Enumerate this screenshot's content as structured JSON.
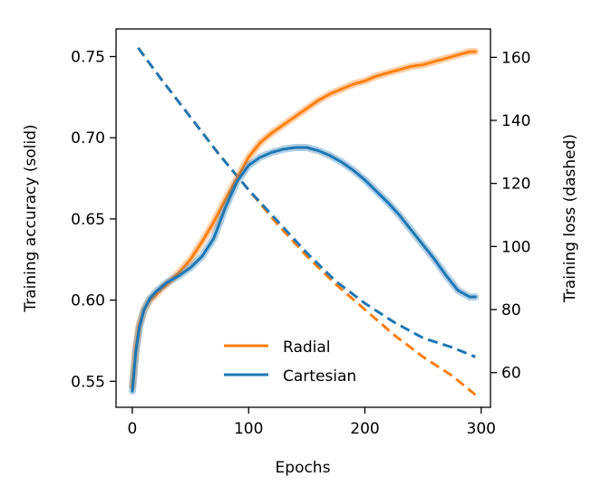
{
  "chart_data": {
    "type": "line",
    "xlabel": "Epochs",
    "ylabel_left": "Training accuracy (solid)",
    "ylabel_right": "Training loss (dashed)",
    "xlim": [
      -14,
      308
    ],
    "ylim_left": [
      0.534,
      0.767
    ],
    "ylim_right": [
      49,
      169
    ],
    "xticks": [
      0,
      100,
      200,
      300
    ],
    "yticks_left": [
      0.55,
      0.6,
      0.65,
      0.7,
      0.75
    ],
    "yticks_right": [
      60,
      80,
      100,
      120,
      140,
      160
    ],
    "legend_position": "lower-center",
    "grid": false,
    "colors": {
      "radial": "#ff7f0e",
      "cartesian": "#1f77b4"
    },
    "accuracy_series": [
      {
        "name": "Radial",
        "axis": "left",
        "style": "solid",
        "x": [
          0,
          3,
          6,
          10,
          15,
          20,
          25,
          30,
          40,
          50,
          60,
          70,
          80,
          90,
          100,
          110,
          120,
          130,
          140,
          150,
          160,
          170,
          180,
          190,
          200,
          210,
          220,
          230,
          240,
          250,
          260,
          270,
          280,
          290,
          295
        ],
        "y": [
          0.547,
          0.57,
          0.585,
          0.594,
          0.6,
          0.603,
          0.607,
          0.61,
          0.617,
          0.625,
          0.636,
          0.648,
          0.662,
          0.675,
          0.688,
          0.697,
          0.703,
          0.708,
          0.713,
          0.718,
          0.723,
          0.727,
          0.73,
          0.733,
          0.735,
          0.738,
          0.74,
          0.742,
          0.744,
          0.745,
          0.747,
          0.749,
          0.751,
          0.753,
          0.753
        ]
      },
      {
        "name": "Cartesian",
        "axis": "left",
        "style": "solid",
        "x": [
          0,
          3,
          6,
          10,
          15,
          20,
          25,
          30,
          40,
          50,
          60,
          70,
          80,
          90,
          100,
          110,
          120,
          130,
          140,
          150,
          160,
          170,
          180,
          190,
          200,
          210,
          220,
          230,
          240,
          250,
          260,
          270,
          280,
          290,
          295
        ],
        "y": [
          0.544,
          0.568,
          0.583,
          0.594,
          0.601,
          0.605,
          0.608,
          0.611,
          0.615,
          0.62,
          0.627,
          0.638,
          0.657,
          0.673,
          0.683,
          0.688,
          0.691,
          0.693,
          0.694,
          0.694,
          0.692,
          0.689,
          0.685,
          0.68,
          0.674,
          0.667,
          0.66,
          0.652,
          0.643,
          0.634,
          0.625,
          0.615,
          0.606,
          0.602,
          0.602
        ]
      }
    ],
    "loss_series": [
      {
        "name": "Radial",
        "axis": "right",
        "style": "dashed",
        "x": [
          5,
          25,
          50,
          75,
          100,
          125,
          150,
          175,
          200,
          225,
          250,
          275,
          295
        ],
        "y": [
          163,
          153,
          141,
          129,
          118,
          107,
          97,
          88,
          80,
          72,
          65,
          59,
          53
        ]
      },
      {
        "name": "Cartesian",
        "axis": "right",
        "style": "dashed",
        "x": [
          5,
          25,
          50,
          75,
          100,
          125,
          150,
          175,
          200,
          225,
          250,
          275,
          295
        ],
        "y": [
          163,
          153,
          141,
          129,
          118,
          108,
          98,
          89,
          82,
          76,
          71,
          68,
          65
        ]
      }
    ],
    "legend": [
      {
        "label": "Radial",
        "series": "Radial"
      },
      {
        "label": "Cartesian",
        "series": "Cartesian"
      }
    ]
  }
}
